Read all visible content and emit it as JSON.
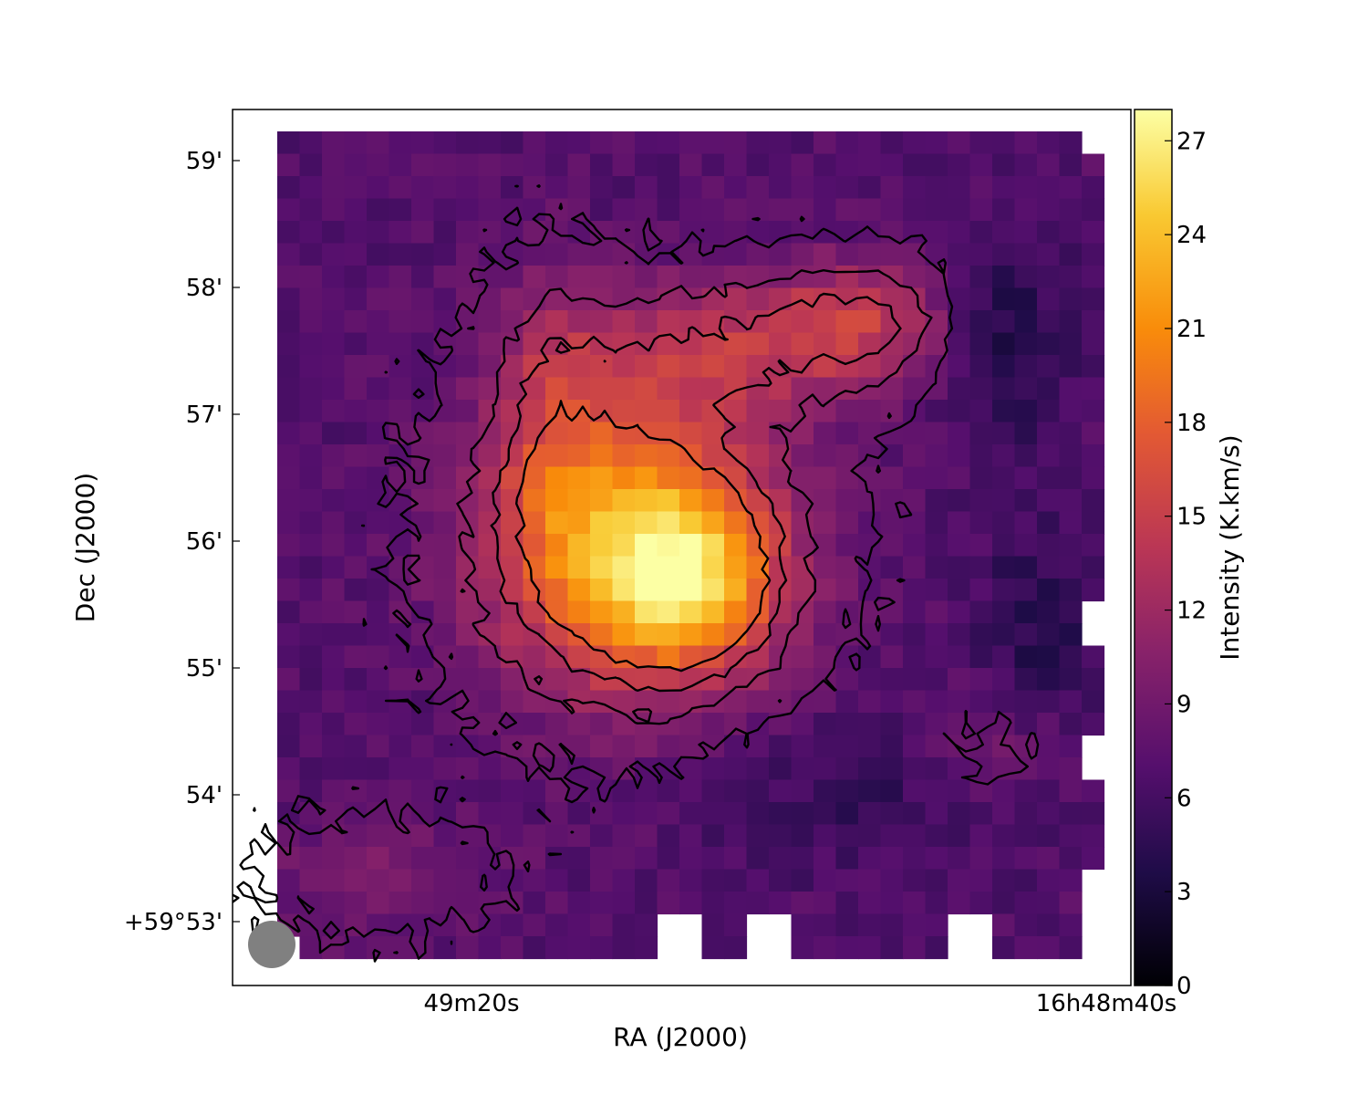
{
  "chart_data": {
    "type": "heatmap",
    "title": "",
    "xlabel": "RA (J2000)",
    "ylabel": "Dec (J2000)",
    "colorbar_label": "Intensity (K.km/s)",
    "colormap": "inferno",
    "color_range": [
      0,
      28
    ],
    "colorbar_ticks": [
      "0",
      "3",
      "6",
      "9",
      "12",
      "15",
      "18",
      "21",
      "24",
      "27"
    ],
    "colorbar_tick_values": [
      0,
      3,
      6,
      9,
      12,
      15,
      18,
      21,
      24,
      27
    ],
    "x_ticks": [
      "49m20s",
      "16h48m40s"
    ],
    "y_ticks": [
      "+59°53'",
      "54'",
      "55'",
      "56'",
      "57'",
      "58'",
      "59'"
    ],
    "y_tick_values_arcmin": [
      0,
      1,
      2,
      3,
      4,
      5,
      6
    ],
    "beam": "filled-circle-lower-left",
    "contours": "black",
    "grid": false,
    "peak_intensity": 27,
    "components": [
      {
        "ra_frac": 0.43,
        "dec_frac": 0.5,
        "peak": 16,
        "sigma_ra": 0.12,
        "sigma_dec": 0.12
      },
      {
        "ra_frac": 0.5,
        "dec_frac": 0.55,
        "peak": 9,
        "sigma_ra": 0.07,
        "sigma_dec": 0.07
      },
      {
        "ra_frac": 0.56,
        "dec_frac": 0.26,
        "peak": 6,
        "sigma_ra": 0.16,
        "sigma_dec": 0.06
      },
      {
        "ra_frac": 0.72,
        "dec_frac": 0.22,
        "peak": 5,
        "sigma_ra": 0.09,
        "sigma_dec": 0.05
      },
      {
        "ra_frac": 0.33,
        "dec_frac": 0.34,
        "peak": 4,
        "sigma_ra": 0.05,
        "sigma_dec": 0.12
      },
      {
        "ra_frac": 0.12,
        "dec_frac": 0.9,
        "peak": 3,
        "sigma_ra": 0.1,
        "sigma_dec": 0.05
      },
      {
        "ra_frac": 0.87,
        "dec_frac": 0.75,
        "peak": 3,
        "sigma_ra": 0.06,
        "sigma_dec": 0.05
      },
      {
        "ra_frac": 0.72,
        "dec_frac": 0.8,
        "peak": -2,
        "sigma_ra": 0.14,
        "sigma_dec": 0.07
      },
      {
        "ra_frac": 0.87,
        "dec_frac": 0.25,
        "peak": -5,
        "sigma_ra": 0.06,
        "sigma_dec": 0.08
      },
      {
        "ra_frac": 0.92,
        "dec_frac": 0.6,
        "peak": -3,
        "sigma_ra": 0.05,
        "sigma_dec": 0.1
      }
    ],
    "contour_levels": [
      8,
      11,
      14,
      17
    ]
  }
}
